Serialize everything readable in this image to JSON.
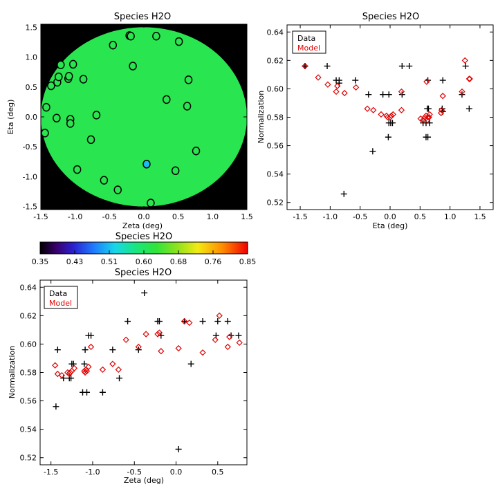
{
  "chart_data": [
    {
      "id": "map",
      "type": "heatmap",
      "title": "Species H2O",
      "xlabel": "Zeta (deg)",
      "ylabel": "Eta (deg)",
      "xlim": [
        -1.5,
        1.5
      ],
      "ylim": [
        -1.55,
        1.55
      ],
      "xticks": [
        -1.5,
        -1.0,
        -0.5,
        0.0,
        0.5,
        1.0,
        1.5
      ],
      "yticks": [
        -1.5,
        -1.0,
        -0.5,
        0.0,
        0.5,
        1.0,
        1.5
      ],
      "disk_radius": 1.5,
      "disk_value": 0.615,
      "markers": [
        {
          "zeta": -1.44,
          "eta": -0.27,
          "v": 0.615
        },
        {
          "zeta": -1.42,
          "eta": 0.16,
          "v": 0.615
        },
        {
          "zeta": -1.35,
          "eta": 0.52,
          "v": 0.615
        },
        {
          "zeta": -1.27,
          "eta": -0.02,
          "v": 0.615
        },
        {
          "zeta": -1.26,
          "eta": 0.58,
          "v": 0.615
        },
        {
          "zeta": -1.24,
          "eta": 0.67,
          "v": 0.615
        },
        {
          "zeta": -1.21,
          "eta": 0.87,
          "v": 0.615
        },
        {
          "zeta": -1.1,
          "eta": 0.64,
          "v": 0.615
        },
        {
          "zeta": -1.09,
          "eta": 0.68,
          "v": 0.615
        },
        {
          "zeta": -1.07,
          "eta": -0.04,
          "v": 0.615
        },
        {
          "zeta": -1.07,
          "eta": -0.11,
          "v": 0.615
        },
        {
          "zeta": -1.03,
          "eta": 0.88,
          "v": 0.615
        },
        {
          "zeta": -0.97,
          "eta": -0.88,
          "v": 0.615
        },
        {
          "zeta": -0.88,
          "eta": 0.63,
          "v": 0.615
        },
        {
          "zeta": -0.77,
          "eta": -0.38,
          "v": 0.615
        },
        {
          "zeta": -0.69,
          "eta": 0.03,
          "v": 0.615
        },
        {
          "zeta": -0.58,
          "eta": -1.06,
          "v": 0.615
        },
        {
          "zeta": -0.45,
          "eta": 1.2,
          "v": 0.615
        },
        {
          "zeta": -0.38,
          "eta": -1.22,
          "v": 0.615
        },
        {
          "zeta": -0.21,
          "eta": 1.36,
          "v": 0.615
        },
        {
          "zeta": -0.19,
          "eta": 1.35,
          "v": 0.615
        },
        {
          "zeta": -0.16,
          "eta": 0.85,
          "v": 0.615
        },
        {
          "zeta": 0.04,
          "eta": -0.79,
          "v": 0.515
        },
        {
          "zeta": 0.1,
          "eta": -1.44,
          "v": 0.615
        },
        {
          "zeta": 0.18,
          "eta": 1.35,
          "v": 0.615
        },
        {
          "zeta": 0.33,
          "eta": 0.29,
          "v": 0.615
        },
        {
          "zeta": 0.46,
          "eta": -0.9,
          "v": 0.615
        },
        {
          "zeta": 0.51,
          "eta": 1.26,
          "v": 0.615
        },
        {
          "zeta": 0.63,
          "eta": 0.18,
          "v": 0.615
        },
        {
          "zeta": 0.65,
          "eta": 0.62,
          "v": 0.615
        },
        {
          "zeta": 0.76,
          "eta": -0.57,
          "v": 0.615
        }
      ]
    },
    {
      "id": "colorbar",
      "type": "colorbar",
      "title": "Species H2O",
      "range": [
        0.35,
        0.85
      ],
      "tick_labels": [
        "0.35",
        "0.43",
        "0.51",
        "0.60",
        "0.68",
        "0.76",
        "0.85"
      ]
    },
    {
      "id": "eta_plot",
      "type": "scatter",
      "title": "Species H2O",
      "xlabel": "Eta (deg)",
      "ylabel": "Normalization",
      "xlim": [
        -1.72,
        1.72
      ],
      "ylim": [
        0.515,
        0.645
      ],
      "xticks": [
        -1.5,
        -1.0,
        -0.5,
        0.0,
        0.5,
        1.0,
        1.5
      ],
      "yticks": [
        0.52,
        0.54,
        0.56,
        0.58,
        0.6,
        0.62,
        0.64
      ],
      "legend": [
        "Data",
        "Model"
      ],
      "series": [
        {
          "name": "Data",
          "marker": "plus",
          "color": "#000000",
          "x": [
            -1.42,
            -1.42,
            -1.05,
            -0.9,
            -0.85,
            -0.85,
            -0.77,
            -0.58,
            -0.36,
            -0.29,
            -0.12,
            -0.03,
            -0.02,
            -0.02,
            0.01,
            0.04,
            0.2,
            0.2,
            0.32,
            0.55,
            0.6,
            0.6,
            0.62,
            0.63,
            0.63,
            0.64,
            0.66,
            0.87,
            0.88,
            0.88,
            1.2,
            1.26,
            1.32
          ],
          "y": [
            0.616,
            0.616,
            0.616,
            0.606,
            0.604,
            0.606,
            0.526,
            0.606,
            0.596,
            0.556,
            0.596,
            0.566,
            0.576,
            0.596,
            0.576,
            0.576,
            0.616,
            0.596,
            0.616,
            0.576,
            0.566,
            0.576,
            0.586,
            0.606,
            0.566,
            0.586,
            0.576,
            0.586,
            0.584,
            0.606,
            0.596,
            0.616,
            0.586
          ]
        },
        {
          "name": "Model",
          "marker": "diamond",
          "color": "#e00000",
          "x": [
            -1.42,
            -1.2,
            -1.04,
            -0.9,
            -0.88,
            -0.76,
            -0.57,
            -0.38,
            -0.28,
            -0.15,
            -0.06,
            -0.04,
            0.0,
            0.02,
            0.05,
            0.19,
            0.19,
            0.51,
            0.55,
            0.58,
            0.6,
            0.61,
            0.62,
            0.63,
            0.65,
            0.66,
            0.85,
            0.86,
            0.88,
            1.2,
            1.25,
            1.32,
            1.33
          ],
          "y": [
            0.616,
            0.608,
            0.603,
            0.598,
            0.602,
            0.597,
            0.601,
            0.586,
            0.585,
            0.582,
            0.581,
            0.58,
            0.58,
            0.581,
            0.582,
            0.598,
            0.585,
            0.579,
            0.578,
            0.58,
            0.581,
            0.605,
            0.578,
            0.58,
            0.58,
            0.582,
            0.583,
            0.585,
            0.595,
            0.598,
            0.62,
            0.607,
            0.607
          ]
        }
      ]
    },
    {
      "id": "zeta_plot",
      "type": "scatter",
      "title": "Species H2O",
      "xlabel": "Zeta (deg)",
      "ylabel": "Normalization",
      "xlim": [
        -1.63,
        0.85
      ],
      "ylim": [
        0.515,
        0.645
      ],
      "xticks": [
        -1.5,
        -1.0,
        -0.5,
        0.0,
        0.5
      ],
      "yticks": [
        0.52,
        0.54,
        0.56,
        0.58,
        0.6,
        0.62,
        0.64
      ],
      "legend": [
        "Data",
        "Model"
      ],
      "series": [
        {
          "name": "Data",
          "marker": "plus",
          "color": "#000000",
          "x": [
            -1.44,
            -1.42,
            -1.35,
            -1.28,
            -1.26,
            -1.25,
            -1.23,
            -1.12,
            -1.1,
            -1.09,
            -1.07,
            -1.05,
            -1.02,
            -0.88,
            -0.76,
            -0.68,
            -0.58,
            -0.45,
            -0.38,
            -0.22,
            -0.2,
            -0.18,
            0.03,
            0.1,
            0.18,
            0.32,
            0.48,
            0.5,
            0.62,
            0.66,
            0.75
          ],
          "y": [
            0.556,
            0.596,
            0.576,
            0.576,
            0.576,
            0.586,
            0.586,
            0.566,
            0.586,
            0.596,
            0.566,
            0.606,
            0.606,
            0.566,
            0.596,
            0.576,
            0.616,
            0.596,
            0.636,
            0.616,
            0.616,
            0.606,
            0.526,
            0.616,
            0.586,
            0.616,
            0.606,
            0.616,
            0.616,
            0.606,
            0.606
          ]
        },
        {
          "name": "Model",
          "marker": "diamond",
          "color": "#e00000",
          "x": [
            -1.45,
            -1.42,
            -1.37,
            -1.3,
            -1.28,
            -1.27,
            -1.25,
            -1.22,
            -1.1,
            -1.09,
            -1.08,
            -1.07,
            -1.05,
            -1.02,
            -0.88,
            -0.76,
            -0.69,
            -0.6,
            -0.45,
            -0.36,
            -0.22,
            -0.2,
            -0.18,
            0.03,
            0.1,
            0.16,
            0.32,
            0.47,
            0.52,
            0.62,
            0.64,
            0.76
          ],
          "y": [
            0.585,
            0.579,
            0.578,
            0.58,
            0.579,
            0.58,
            0.581,
            0.583,
            0.581,
            0.58,
            0.582,
            0.581,
            0.584,
            0.598,
            0.582,
            0.586,
            0.582,
            0.603,
            0.598,
            0.607,
            0.607,
            0.608,
            0.595,
            0.597,
            0.616,
            0.615,
            0.594,
            0.603,
            0.62,
            0.598,
            0.605,
            0.601
          ]
        }
      ]
    }
  ]
}
